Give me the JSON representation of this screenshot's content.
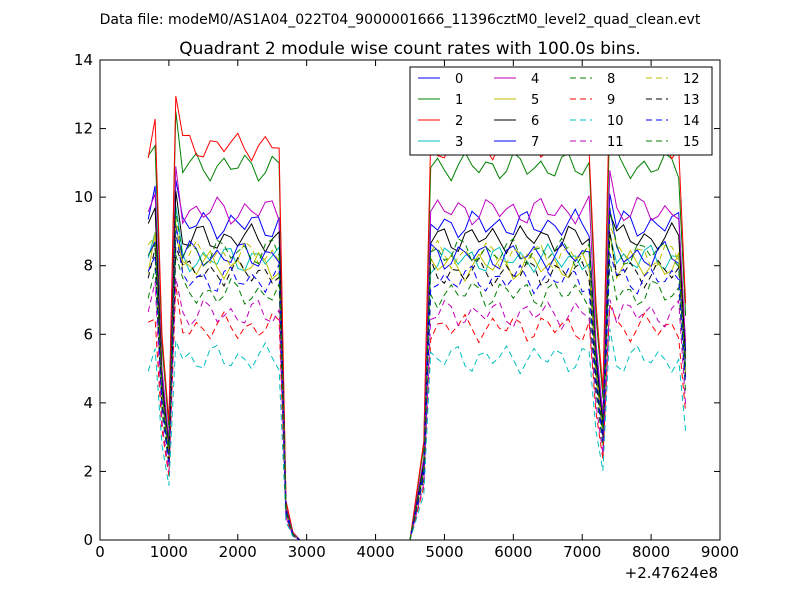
{
  "chart_data": {
    "type": "line",
    "suptitle": "Data file: modeM0/AS1A04_022T04_9000001666_11396cztM0_level2_quad_clean.evt",
    "title": "Quadrant 2 module wise count rates with 100.0s bins.",
    "xlabel": "",
    "ylabel": "",
    "x_offset_label": "+2.47624e8",
    "xlim": [
      0,
      9000
    ],
    "ylim": [
      0,
      14
    ],
    "xticks": [
      "0",
      "1000",
      "2000",
      "3000",
      "4000",
      "5000",
      "6000",
      "7000",
      "8000",
      "9000"
    ],
    "yticks": [
      "0",
      "2",
      "4",
      "6",
      "8",
      "10",
      "12",
      "14"
    ],
    "legend_position": "top-right",
    "x": [
      700,
      800,
      900,
      1000,
      1100,
      1200,
      1300,
      1400,
      1500,
      1600,
      1700,
      1800,
      1900,
      2000,
      2100,
      2200,
      2300,
      2400,
      2500,
      2600,
      2700,
      2800,
      2900,
      3000,
      3500,
      4000,
      4500,
      4700,
      4800,
      4900,
      5000,
      5100,
      5200,
      5300,
      5400,
      5500,
      5600,
      5700,
      5800,
      5900,
      6000,
      6100,
      6200,
      6300,
      6400,
      6500,
      6600,
      6700,
      6800,
      6900,
      7000,
      7100,
      7200,
      7300,
      7400,
      7500,
      7600,
      7700,
      7800,
      7900,
      8000,
      8100,
      8200,
      8300,
      8400,
      8500
    ],
    "base_profile": [
      1.0,
      1.08,
      0.52,
      0.3,
      1.14,
      1.0,
      1.0,
      1.0,
      1.0,
      1.0,
      1.0,
      1.0,
      1.0,
      1.0,
      1.0,
      1.0,
      1.0,
      1.0,
      1.0,
      1.0,
      0.1,
      0.02,
      0,
      0,
      0,
      0,
      0,
      0.25,
      1.0,
      1.0,
      1.0,
      1.0,
      1.0,
      1.0,
      1.0,
      1.0,
      1.0,
      1.0,
      1.0,
      1.0,
      1.0,
      1.0,
      1.0,
      1.0,
      1.0,
      1.0,
      1.0,
      1.0,
      1.0,
      1.0,
      1.0,
      1.0,
      0.6,
      0.38,
      1.12,
      1.0,
      1.0,
      1.0,
      1.0,
      1.0,
      1.0,
      1.0,
      1.0,
      1.0,
      1.0,
      0.6
    ],
    "series": [
      {
        "name": "0",
        "color": "#0000ff",
        "dash": "solid",
        "level": 9.2
      },
      {
        "name": "1",
        "color": "#008000",
        "dash": "solid",
        "level": 10.9
      },
      {
        "name": "2",
        "color": "#ff0000",
        "dash": "solid",
        "level": 11.5
      },
      {
        "name": "3",
        "color": "#00bfbf",
        "dash": "solid",
        "level": 8.2
      },
      {
        "name": "4",
        "color": "#bf00bf",
        "dash": "solid",
        "level": 9.6
      },
      {
        "name": "5",
        "color": "#bfbf00",
        "dash": "solid",
        "level": 8.0
      },
      {
        "name": "6",
        "color": "#000000",
        "dash": "solid",
        "level": 8.8
      },
      {
        "name": "7",
        "color": "#0000ff",
        "dash": "solid",
        "level": 8.3
      },
      {
        "name": "8",
        "color": "#008000",
        "dash": "dashed",
        "level": 7.2
      },
      {
        "name": "9",
        "color": "#ff0000",
        "dash": "dashed",
        "level": 6.2
      },
      {
        "name": "10",
        "color": "#00bfbf",
        "dash": "dashed",
        "level": 5.3
      },
      {
        "name": "11",
        "color": "#bf00bf",
        "dash": "dashed",
        "level": 6.6
      },
      {
        "name": "12",
        "color": "#bfbf00",
        "dash": "dashed",
        "level": 8.3
      },
      {
        "name": "13",
        "color": "#000000",
        "dash": "dashed",
        "level": 7.8
      },
      {
        "name": "14",
        "color": "#0000ff",
        "dash": "dashed",
        "level": 7.6
      },
      {
        "name": "15",
        "color": "#008000",
        "dash": "dashed",
        "level": 8.4
      }
    ]
  }
}
